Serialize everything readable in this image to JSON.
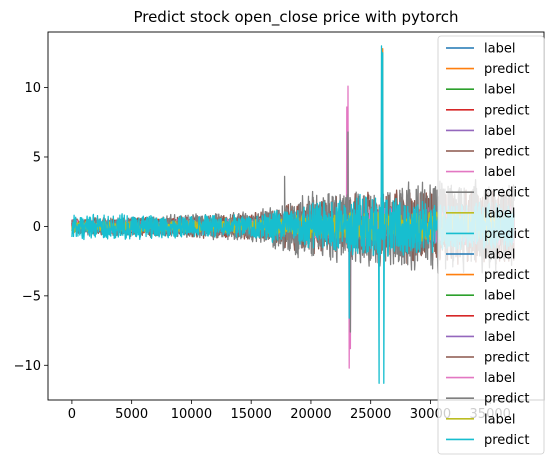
{
  "chart_data": {
    "type": "line",
    "title": "Predict stock open_close price with pytorch",
    "xlabel": "",
    "ylabel": "",
    "xlim": [
      -2000,
      39500
    ],
    "ylim": [
      -12.5,
      14.0
    ],
    "x_ticks": [
      0,
      5000,
      10000,
      15000,
      20000,
      25000,
      30000,
      35000
    ],
    "x_tick_labels": [
      "0",
      "5000",
      "10000",
      "15000",
      "20000",
      "25000",
      "30000",
      "35000"
    ],
    "y_ticks": [
      -10,
      -5,
      0,
      5,
      10
    ],
    "y_tick_labels": [
      "−10",
      "−5",
      "0",
      "5",
      "10"
    ],
    "grid": false,
    "legend_position": "right",
    "x_range": [
      0,
      37000
    ],
    "series": [
      {
        "name": "label",
        "color": "#1f77b4",
        "amplitude_envelope": [
          [
            0,
            0.4
          ],
          [
            15000,
            0.5
          ],
          [
            20000,
            1.0
          ],
          [
            30000,
            1.2
          ],
          [
            37000,
            1.2
          ]
        ]
      },
      {
        "name": "predict",
        "color": "#ff7f0e",
        "amplitude_envelope": [
          [
            0,
            0.5
          ],
          [
            15000,
            0.7
          ],
          [
            20000,
            1.2
          ],
          [
            30000,
            1.5
          ],
          [
            37000,
            1.5
          ]
        ],
        "spikes": [
          {
            "x": 26000,
            "y": 12.8
          }
        ]
      },
      {
        "name": "label",
        "color": "#2ca02c",
        "amplitude_envelope": [
          [
            0,
            0.4
          ],
          [
            15000,
            0.5
          ],
          [
            20000,
            1.0
          ],
          [
            30000,
            1.2
          ],
          [
            37000,
            1.2
          ]
        ]
      },
      {
        "name": "predict",
        "color": "#d62728",
        "amplitude_envelope": [
          [
            0,
            0.5
          ],
          [
            15000,
            0.8
          ],
          [
            20000,
            1.3
          ],
          [
            30000,
            1.6
          ],
          [
            37000,
            1.6
          ]
        ]
      },
      {
        "name": "label",
        "color": "#9467bd",
        "amplitude_envelope": [
          [
            0,
            0.4
          ],
          [
            15000,
            0.5
          ],
          [
            20000,
            1.0
          ],
          [
            30000,
            1.2
          ],
          [
            37000,
            1.2
          ]
        ]
      },
      {
        "name": "predict",
        "color": "#8c564b",
        "amplitude_envelope": [
          [
            0,
            0.6
          ],
          [
            15000,
            1.0
          ],
          [
            20000,
            2.2
          ],
          [
            30000,
            3.0
          ],
          [
            37000,
            3.0
          ]
        ]
      },
      {
        "name": "label",
        "color": "#e377c2",
        "amplitude_envelope": [
          [
            0,
            0.5
          ],
          [
            15000,
            0.6
          ],
          [
            20000,
            1.2
          ],
          [
            30000,
            1.5
          ],
          [
            37000,
            1.5
          ]
        ],
        "spikes": [
          {
            "x": 23100,
            "y": 10.1
          },
          {
            "x": 23200,
            "y": -10.2
          },
          {
            "x": 23300,
            "y": -8.8
          },
          {
            "x": 23000,
            "y": 8.6
          }
        ]
      },
      {
        "name": "predict",
        "color": "#7f7f7f",
        "amplitude_envelope": [
          [
            0,
            0.6
          ],
          [
            15000,
            1.2
          ],
          [
            20000,
            2.8
          ],
          [
            25000,
            3.2
          ],
          [
            30000,
            3.5
          ],
          [
            37000,
            3.5
          ]
        ],
        "spikes": [
          {
            "x": 17800,
            "y": 3.6
          },
          {
            "x": 23300,
            "y": -7.6
          },
          {
            "x": 23100,
            "y": 6.8
          }
        ]
      },
      {
        "name": "label",
        "color": "#bcbd22",
        "amplitude_envelope": [
          [
            0,
            0.4
          ],
          [
            15000,
            0.5
          ],
          [
            20000,
            1.0
          ],
          [
            30000,
            1.2
          ],
          [
            37000,
            1.2
          ]
        ]
      },
      {
        "name": "predict",
        "color": "#17becf",
        "amplitude_envelope": [
          [
            0,
            1.0
          ],
          [
            5000,
            1.0
          ],
          [
            10000,
            0.9
          ],
          [
            15000,
            0.9
          ],
          [
            20000,
            1.8
          ],
          [
            25000,
            2.5
          ],
          [
            30000,
            2.0
          ],
          [
            37000,
            1.8
          ]
        ],
        "spikes": [
          {
            "x": 23200,
            "y": 6.5
          },
          {
            "x": 23200,
            "y": -6.6
          },
          {
            "x": 25900,
            "y": 13.0
          },
          {
            "x": 25700,
            "y": -11.3
          },
          {
            "x": 26100,
            "y": -11.3
          },
          {
            "x": 26000,
            "y": 12.5
          }
        ]
      },
      {
        "name": "label",
        "color": "#1f77b4",
        "amplitude_envelope": [
          [
            0,
            0.3
          ]
        ]
      },
      {
        "name": "predict",
        "color": "#ff7f0e",
        "amplitude_envelope": [
          [
            0,
            0.3
          ]
        ]
      },
      {
        "name": "label",
        "color": "#2ca02c",
        "amplitude_envelope": [
          [
            0,
            0.3
          ]
        ]
      },
      {
        "name": "predict",
        "color": "#d62728",
        "amplitude_envelope": [
          [
            0,
            0.3
          ]
        ]
      },
      {
        "name": "label",
        "color": "#9467bd",
        "amplitude_envelope": [
          [
            0,
            0.3
          ]
        ]
      },
      {
        "name": "predict",
        "color": "#8c564b",
        "amplitude_envelope": [
          [
            0,
            0.3
          ]
        ]
      },
      {
        "name": "label",
        "color": "#e377c2",
        "amplitude_envelope": [
          [
            0,
            0.3
          ]
        ]
      },
      {
        "name": "predict",
        "color": "#7f7f7f",
        "amplitude_envelope": [
          [
            0,
            0.3
          ]
        ]
      },
      {
        "name": "label",
        "color": "#bcbd22",
        "amplitude_envelope": [
          [
            0,
            0.3
          ]
        ]
      },
      {
        "name": "predict",
        "color": "#17becf",
        "amplitude_envelope": [
          [
            0,
            0.3
          ]
        ]
      }
    ]
  }
}
